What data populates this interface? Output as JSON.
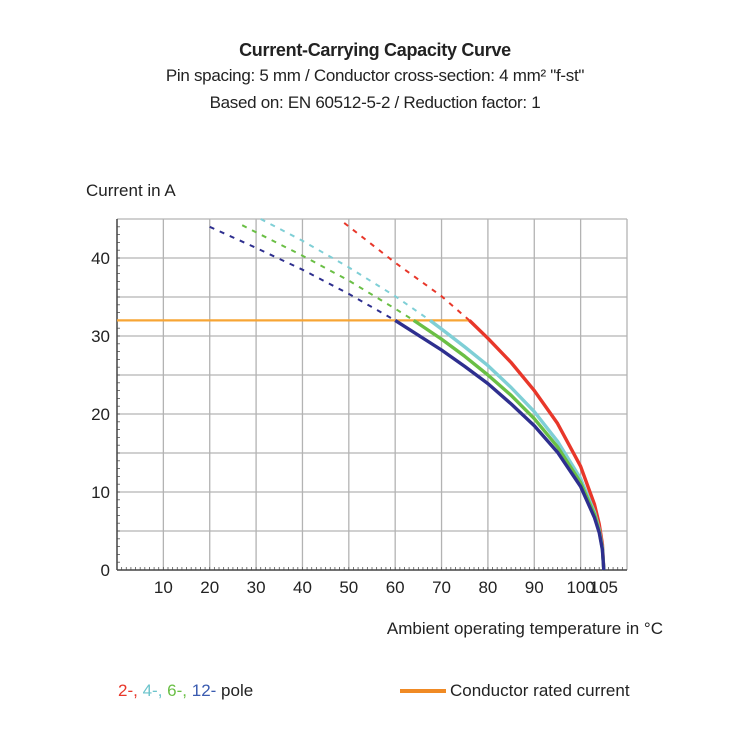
{
  "chart_data": {
    "type": "line",
    "title": "Current-Carrying Capacity Curve",
    "subtitle": [
      "Pin spacing: 5 mm / Conductor cross-section: 4 mm² \"f-st\"",
      "Based on: EN 60512-5-2 / Reduction factor: 1"
    ],
    "xlabel": "Ambient operating temperature in °C",
    "ylabel": "Current in A",
    "xlim": [
      0,
      110
    ],
    "ylim": [
      0,
      45
    ],
    "x_ticks": [
      10,
      20,
      30,
      40,
      50,
      60,
      70,
      80,
      90,
      100,
      105
    ],
    "y_ticks": [
      0,
      10,
      20,
      30,
      40
    ],
    "grid": {
      "x_step": 10,
      "y_step": 5,
      "on": true
    },
    "rated_current": {
      "name": "Conductor rated current",
      "value": 32,
      "x_range": [
        0,
        76
      ],
      "color": "#f7a535"
    },
    "series": [
      {
        "name": "2-",
        "color": "#e8372a",
        "dashed": [
          [
            49,
            44.5
          ],
          [
            60,
            39.4
          ],
          [
            70,
            35.1
          ],
          [
            76,
            32.0
          ]
        ],
        "solid": [
          [
            76,
            32.0
          ],
          [
            80,
            29.7
          ],
          [
            85,
            26.6
          ],
          [
            90,
            23.0
          ],
          [
            95,
            18.8
          ],
          [
            100,
            13.3
          ],
          [
            103,
            8.4
          ],
          [
            104,
            5.9
          ],
          [
            104.7,
            3.3
          ],
          [
            105,
            0
          ]
        ]
      },
      {
        "name": "4-",
        "color": "#7fcfd6",
        "dashed": [
          [
            31,
            45.0
          ],
          [
            40,
            42.2
          ],
          [
            50,
            38.8
          ],
          [
            60,
            35.1
          ],
          [
            67.5,
            32.0
          ]
        ],
        "solid": [
          [
            67.5,
            32.0
          ],
          [
            70,
            30.9
          ],
          [
            75,
            28.6
          ],
          [
            80,
            26.2
          ],
          [
            85,
            23.4
          ],
          [
            90,
            20.3
          ],
          [
            95,
            16.5
          ],
          [
            100,
            11.7
          ],
          [
            103,
            7.4
          ],
          [
            104,
            5.2
          ],
          [
            104.7,
            2.9
          ],
          [
            105,
            0
          ]
        ]
      },
      {
        "name": "6-",
        "color": "#6abf45",
        "dashed": [
          [
            27,
            44.2
          ],
          [
            30,
            43.3
          ],
          [
            40,
            40.3
          ],
          [
            50,
            37.1
          ],
          [
            60,
            33.5
          ],
          [
            64,
            32.0
          ]
        ],
        "solid": [
          [
            64,
            32.0
          ],
          [
            70,
            29.6
          ],
          [
            75,
            27.4
          ],
          [
            80,
            25.0
          ],
          [
            85,
            22.4
          ],
          [
            90,
            19.4
          ],
          [
            95,
            15.8
          ],
          [
            100,
            11.2
          ],
          [
            103,
            7.1
          ],
          [
            104,
            5.0
          ],
          [
            104.7,
            2.7
          ],
          [
            105,
            0
          ]
        ]
      },
      {
        "name": "12-",
        "color": "#2e2f8f",
        "dashed": [
          [
            20,
            44.0
          ],
          [
            30,
            41.3
          ],
          [
            40,
            38.5
          ],
          [
            50,
            35.4
          ],
          [
            60,
            32.0
          ]
        ],
        "solid": [
          [
            60,
            32.0
          ],
          [
            70,
            28.2
          ],
          [
            75,
            26.1
          ],
          [
            80,
            23.9
          ],
          [
            85,
            21.3
          ],
          [
            90,
            18.5
          ],
          [
            95,
            15.1
          ],
          [
            100,
            10.7
          ],
          [
            103,
            6.7
          ],
          [
            104,
            4.8
          ],
          [
            104.7,
            2.6
          ],
          [
            105,
            0
          ]
        ]
      }
    ],
    "legend": {
      "placement": "bottom",
      "poles_suffix": " pole"
    }
  }
}
